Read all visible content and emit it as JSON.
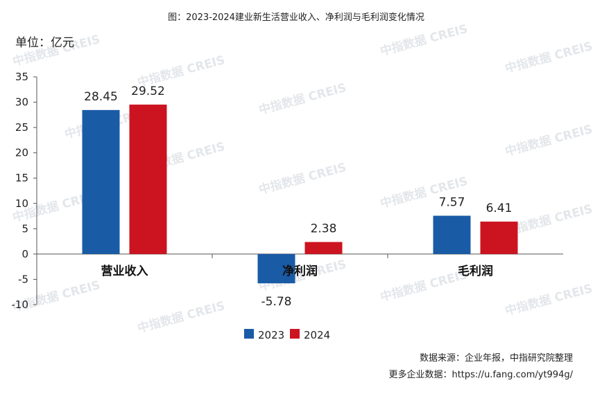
{
  "header": {
    "title": "图：2023-2024建业新生活营业收入、净利润与毛利润变化情况",
    "unit": "单位：亿元"
  },
  "watermark": {
    "text": "中指数据 CREIS"
  },
  "source": {
    "line1": "数据来源：企业年报，中指研究院整理",
    "line2": "更多企业数据：https://u.fang.com/yt994g/"
  },
  "colors": {
    "series_2023": "#1a5ba6",
    "series_2024": "#cc1420",
    "axis": "#555555",
    "watermark": "#e3e6ea"
  },
  "chart_data": {
    "type": "bar",
    "categories": [
      "营业收入",
      "净利润",
      "毛利润"
    ],
    "series": [
      {
        "name": "2023",
        "values": [
          28.45,
          -5.78,
          7.57
        ],
        "labels": [
          "28.45",
          "-5.78",
          "7.57"
        ]
      },
      {
        "name": "2024",
        "values": [
          29.52,
          2.38,
          6.41
        ],
        "labels": [
          "29.52",
          "2.38",
          "6.41"
        ]
      }
    ],
    "ylim": [
      -10,
      35
    ],
    "yticks": [
      "35",
      "30",
      "25",
      "20",
      "15",
      "10",
      "5",
      "0",
      "-5",
      "-10"
    ],
    "legend_position": "bottom-center",
    "grid": false
  }
}
